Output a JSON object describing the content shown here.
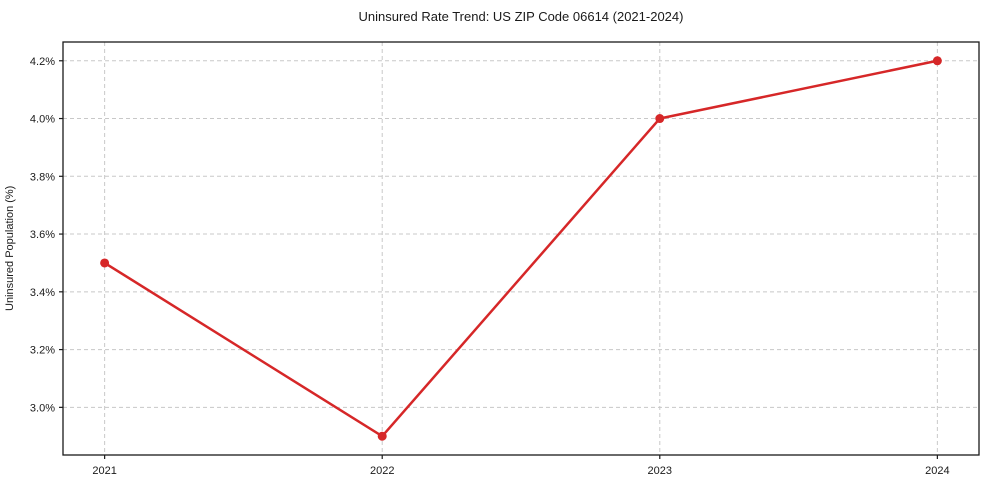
{
  "chart_data": {
    "type": "line",
    "title": "Uninsured Rate Trend: US ZIP Code 06614 (2021-2024)",
    "xlabel": "",
    "ylabel": "Uninsured Population (%)",
    "x": [
      2021,
      2022,
      2023,
      2024
    ],
    "x_tick_labels": [
      "2021",
      "2022",
      "2023",
      "2024"
    ],
    "series": [
      {
        "name": "Uninsured Rate",
        "values": [
          3.5,
          2.9,
          4.0,
          4.2
        ],
        "color": "#d62728",
        "marker": "circle"
      }
    ],
    "y_ticks": [
      {
        "value": 3.0,
        "label": "3.0%"
      },
      {
        "value": 3.2,
        "label": "3.2%"
      },
      {
        "value": 3.4,
        "label": "3.4%"
      },
      {
        "value": 3.6,
        "label": "3.6%"
      },
      {
        "value": 3.8,
        "label": "3.8%"
      },
      {
        "value": 4.0,
        "label": "4.0%"
      },
      {
        "value": 4.2,
        "label": "4.2%"
      }
    ],
    "xlim": [
      2020.85,
      2024.15
    ],
    "ylim": [
      2.835,
      4.265
    ],
    "grid": true,
    "grid_style": "dashed",
    "legend": "none",
    "colors": {
      "line": "#d62728",
      "grid": "#c8c8c8",
      "axis": "#1a1a1a",
      "background": "#ffffff"
    }
  }
}
